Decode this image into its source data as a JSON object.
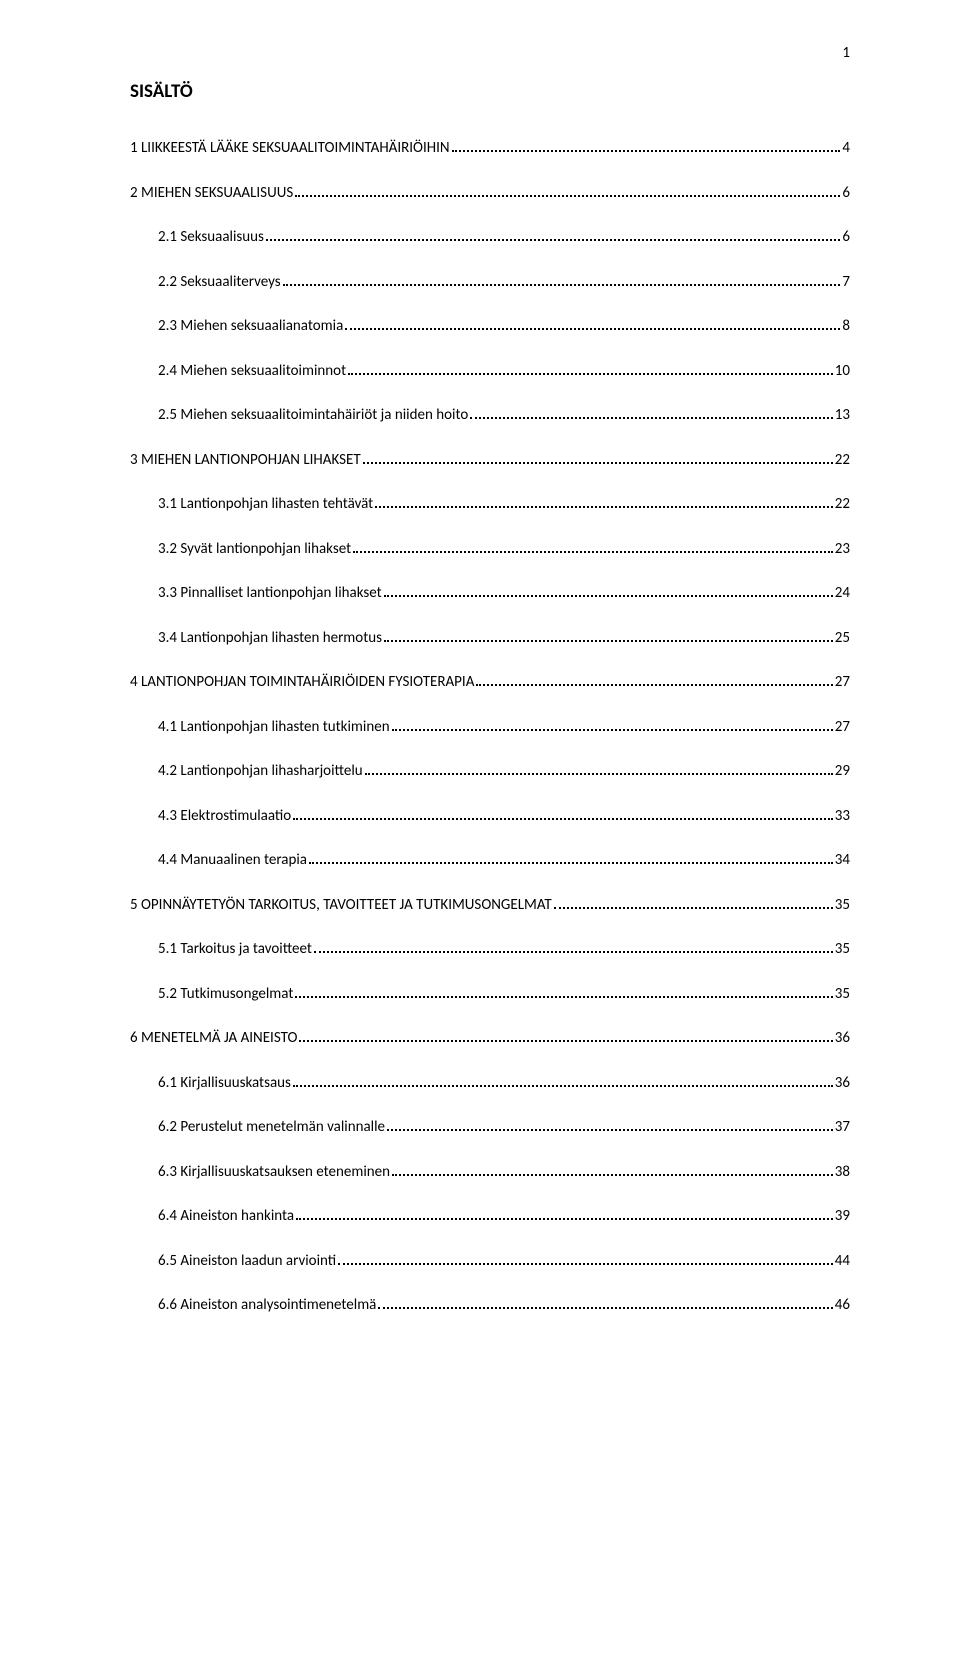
{
  "page_number": "1",
  "doc_title": "SISÄLTÖ",
  "toc": [
    {
      "level": 1,
      "label": "1 LIIKKEESTÄ LÄÄKE SEKSUAALITOIMINTAHÄIRIÖIHIN",
      "page": "4"
    },
    {
      "level": 1,
      "label": "2 MIEHEN SEKSUAALISUUS",
      "page": "6"
    },
    {
      "level": 2,
      "label": "2.1 Seksuaalisuus",
      "page": "6"
    },
    {
      "level": 2,
      "label": "2.2 Seksuaaliterveys",
      "page": "7"
    },
    {
      "level": 2,
      "label": "2.3 Miehen seksuaalianatomia",
      "page": "8"
    },
    {
      "level": 2,
      "label": "2.4 Miehen seksuaalitoiminnot",
      "page": "10"
    },
    {
      "level": 2,
      "label": "2.5 Miehen seksuaalitoimintahäiriöt ja niiden hoito",
      "page": "13"
    },
    {
      "level": 1,
      "label": "3 MIEHEN LANTIONPOHJAN LIHAKSET",
      "page": "22"
    },
    {
      "level": 2,
      "label": "3.1 Lantionpohjan lihasten tehtävät",
      "page": "22"
    },
    {
      "level": 2,
      "label": "3.2 Syvät lantionpohjan lihakset",
      "page": "23"
    },
    {
      "level": 2,
      "label": "3.3 Pinnalliset lantionpohjan lihakset",
      "page": "24"
    },
    {
      "level": 2,
      "label": "3.4 Lantionpohjan lihasten hermotus",
      "page": "25"
    },
    {
      "level": 1,
      "label": "4 LANTIONPOHJAN TOIMINTAHÄIRIÖIDEN FYSIOTERAPIA",
      "page": "27"
    },
    {
      "level": 2,
      "label": "4.1 Lantionpohjan lihasten tutkiminen",
      "page": "27"
    },
    {
      "level": 2,
      "label": "4.2 Lantionpohjan lihasharjoittelu",
      "page": "29"
    },
    {
      "level": 2,
      "label": "4.3 Elektrostimulaatio",
      "page": "33"
    },
    {
      "level": 2,
      "label": "4.4 Manuaalinen terapia",
      "page": "34"
    },
    {
      "level": 1,
      "label": "5 OPINNÄYTETYÖN TARKOITUS, TAVOITTEET JA TUTKIMUSONGELMAT",
      "page": "35"
    },
    {
      "level": 2,
      "label": "5.1 Tarkoitus ja tavoitteet",
      "page": "35"
    },
    {
      "level": 2,
      "label": "5.2 Tutkimusongelmat",
      "page": "35"
    },
    {
      "level": 1,
      "label": "6 MENETELMÄ JA AINEISTO",
      "page": "36"
    },
    {
      "level": 2,
      "label": "6.1 Kirjallisuuskatsaus",
      "page": "36"
    },
    {
      "level": 2,
      "label": "6.2 Perustelut menetelmän valinnalle",
      "page": "37"
    },
    {
      "level": 2,
      "label": "6.3 Kirjallisuuskatsauksen eteneminen",
      "page": "38"
    },
    {
      "level": 2,
      "label": "6.4 Aineiston hankinta",
      "page": "39"
    },
    {
      "level": 2,
      "label": "6.5 Aineiston laadun arviointi",
      "page": "44"
    },
    {
      "level": 2,
      "label": "6.6 Aineiston analysointimenetelmä",
      "page": "46"
    }
  ]
}
